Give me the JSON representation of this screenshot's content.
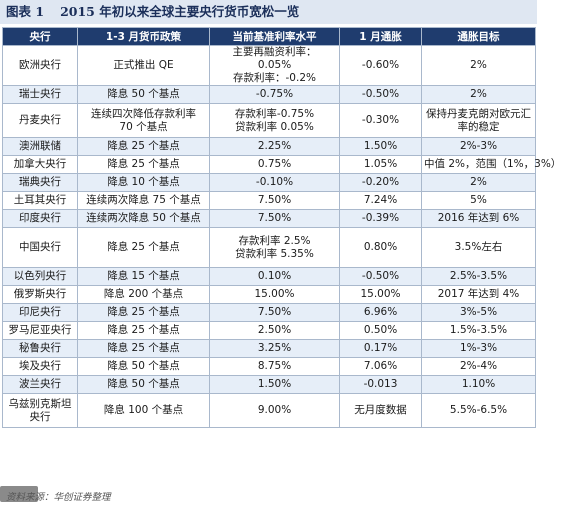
{
  "title": {
    "label": "图表 1",
    "text": "2015 年初以来全球主要央行货币宽松一览"
  },
  "headers": [
    "央行",
    "1-3 月货币政策",
    "当前基准利率水平",
    "1 月通胀",
    "通胀目标"
  ],
  "rows": [
    {
      "bank": [
        "欧洲央行"
      ],
      "policy": [
        "正式推出 QE"
      ],
      "rate": [
        "主要再融资利率：",
        "0.05%",
        "存款利率：-0.2%"
      ],
      "inflation": [
        "-0.60%"
      ],
      "target": [
        "2%"
      ]
    },
    {
      "bank": [
        "瑞士央行"
      ],
      "policy": [
        "降息 50 个基点"
      ],
      "rate": [
        "-0.75%"
      ],
      "inflation": [
        "-0.50%"
      ],
      "target": [
        "2%"
      ]
    },
    {
      "bank": [
        "丹麦央行"
      ],
      "policy": [
        "连续四次降低存款利率",
        "70 个基点"
      ],
      "rate": [
        "存款利率-0.75%",
        "贷款利率 0.05%"
      ],
      "inflation": [
        "-0.30%"
      ],
      "target": [
        "保持丹麦克朗对欧元汇",
        "率的稳定"
      ]
    },
    {
      "bank": [
        "澳洲联储"
      ],
      "policy": [
        "降息 25 个基点"
      ],
      "rate": [
        "2.25%"
      ],
      "inflation": [
        "1.50%"
      ],
      "target": [
        "2%-3%"
      ]
    },
    {
      "bank": [
        "加拿大央行"
      ],
      "policy": [
        "降息 25 个基点"
      ],
      "rate": [
        "0.75%"
      ],
      "inflation": [
        "1.05%"
      ],
      "target": [
        "中值 2%，范围（1%，3%）"
      ]
    },
    {
      "bank": [
        "瑞典央行"
      ],
      "policy": [
        "降息 10 个基点"
      ],
      "rate": [
        "-0.10%"
      ],
      "inflation": [
        "-0.20%"
      ],
      "target": [
        "2%"
      ]
    },
    {
      "bank": [
        "土耳其央行"
      ],
      "policy": [
        "连续两次降息 75 个基点"
      ],
      "rate": [
        "7.50%"
      ],
      "inflation": [
        "7.24%"
      ],
      "target": [
        "5%"
      ]
    },
    {
      "bank": [
        "印度央行"
      ],
      "policy": [
        "连续两次降息 50 个基点"
      ],
      "rate": [
        "7.50%"
      ],
      "inflation": [
        "-0.39%"
      ],
      "target": [
        "2016 年达到 6%"
      ]
    },
    {
      "bank": [
        "中国央行"
      ],
      "policy": [
        "降息 25 个基点"
      ],
      "rate": [
        "存款利率 2.5%",
        "贷款利率 5.35%"
      ],
      "inflation": [
        "0.80%"
      ],
      "target": [
        "3.5%左右"
      ]
    },
    {
      "bank": [
        "以色列央行"
      ],
      "policy": [
        "降息 15 个基点"
      ],
      "rate": [
        "0.10%"
      ],
      "inflation": [
        "-0.50%"
      ],
      "target": [
        "2.5%-3.5%"
      ]
    },
    {
      "bank": [
        "俄罗斯央行"
      ],
      "policy": [
        "降息 200 个基点"
      ],
      "rate": [
        "15.00%"
      ],
      "inflation": [
        "15.00%"
      ],
      "target": [
        "2017 年达到 4%"
      ]
    },
    {
      "bank": [
        "印尼央行"
      ],
      "policy": [
        "降息 25 个基点"
      ],
      "rate": [
        "7.50%"
      ],
      "inflation": [
        "6.96%"
      ],
      "target": [
        "3%-5%"
      ]
    },
    {
      "bank": [
        "罗马尼亚央行"
      ],
      "policy": [
        "降息 25 个基点"
      ],
      "rate": [
        "2.50%"
      ],
      "inflation": [
        "0.50%"
      ],
      "target": [
        "1.5%-3.5%"
      ]
    },
    {
      "bank": [
        "秘鲁央行"
      ],
      "policy": [
        "降息 25 个基点"
      ],
      "rate": [
        "3.25%"
      ],
      "inflation": [
        "0.17%"
      ],
      "target": [
        "1%-3%"
      ]
    },
    {
      "bank": [
        "埃及央行"
      ],
      "policy": [
        "降息 50 个基点"
      ],
      "rate": [
        "8.75%"
      ],
      "inflation": [
        "7.06%"
      ],
      "target": [
        "2%-4%"
      ]
    },
    {
      "bank": [
        "波兰央行"
      ],
      "policy": [
        "降息 50 个基点"
      ],
      "rate": [
        "1.50%"
      ],
      "inflation": [
        "-0.013"
      ],
      "target": [
        "1.10%"
      ]
    },
    {
      "bank": [
        "乌兹别克斯坦",
        "央行"
      ],
      "policy": [
        "降息 100 个基点"
      ],
      "rate": [
        "9.00%"
      ],
      "inflation": [
        "无月度数据"
      ],
      "target": [
        "5.5%-6.5%"
      ]
    }
  ],
  "footer": {
    "source": "资料来源：华创证券整理"
  }
}
